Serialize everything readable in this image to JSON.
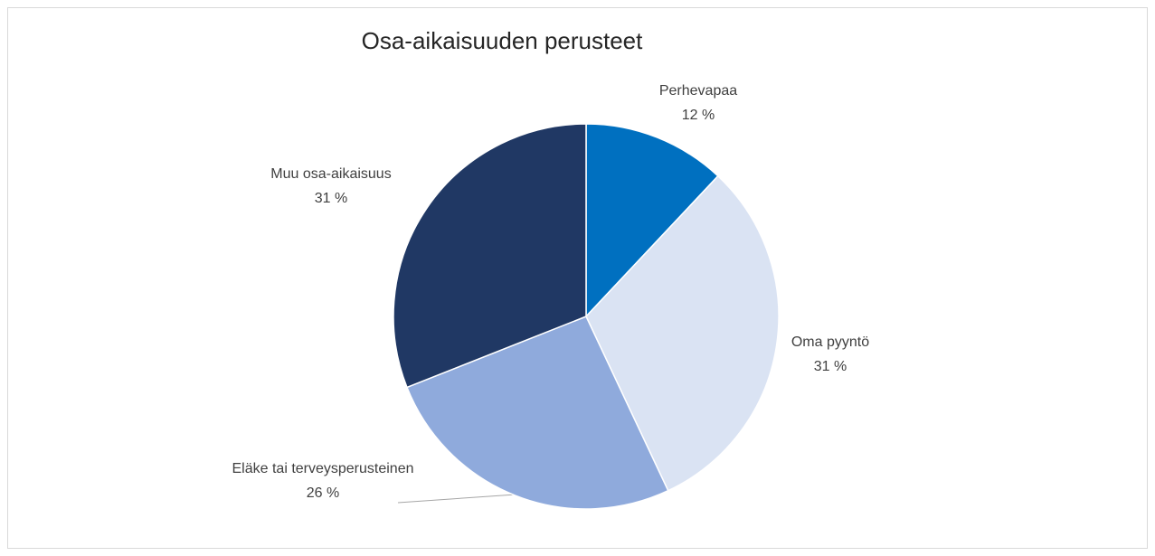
{
  "chart_data": {
    "type": "pie",
    "title": "Osa-aikaisuuden perusteet",
    "categories": [
      "Perhevapaa",
      "Oma pyyntö",
      "Eläke tai terveysperusteinen",
      "Muu osa-aikaisuus"
    ],
    "values": [
      12,
      31,
      26,
      31
    ],
    "value_labels": [
      "12 %",
      "31 %",
      "26 %",
      "31 %"
    ],
    "colors": [
      "#0070c0",
      "#dae3f3",
      "#8faadc",
      "#203864"
    ]
  }
}
